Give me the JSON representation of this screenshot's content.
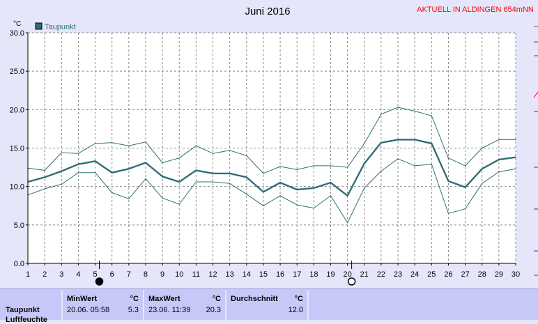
{
  "header": {
    "month_title": "Juni 2016",
    "station_label": "AKTUELL IN ALDINGEN 654mNN"
  },
  "chart_data": {
    "type": "line",
    "title": "Juni 2016",
    "ylabel": "°C",
    "ylim": [
      0,
      30
    ],
    "yticks": [
      "0.0",
      "5.0",
      "10.0",
      "15.0",
      "20.0",
      "25.0",
      "30.0"
    ],
    "x": [
      1,
      2,
      3,
      4,
      5,
      6,
      7,
      8,
      9,
      10,
      11,
      12,
      13,
      14,
      15,
      16,
      17,
      18,
      19,
      20,
      21,
      22,
      23,
      24,
      25,
      26,
      27,
      28,
      29,
      30
    ],
    "grid": true,
    "legend": "top-left",
    "series": [
      {
        "name": "Taupunkt",
        "role": "mean",
        "color": "#2f6f73",
        "values": [
          10.6,
          11.2,
          12.0,
          12.9,
          13.3,
          11.8,
          12.3,
          13.1,
          11.3,
          10.6,
          12.1,
          11.7,
          11.7,
          11.2,
          9.3,
          10.5,
          9.6,
          9.8,
          10.5,
          8.8,
          13.0,
          15.7,
          16.1,
          16.1,
          15.6,
          10.7,
          9.9,
          12.3,
          13.5,
          13.8
        ]
      },
      {
        "role": "max",
        "color": "#2f6f73",
        "values": [
          12.4,
          12.1,
          14.4,
          14.3,
          15.6,
          15.7,
          15.3,
          15.8,
          13.1,
          13.7,
          15.3,
          14.3,
          14.7,
          14.0,
          11.7,
          12.6,
          12.2,
          12.7,
          12.7,
          12.5,
          15.6,
          19.4,
          20.3,
          19.8,
          19.2,
          13.7,
          12.7,
          15.0,
          16.1,
          16.1
        ]
      },
      {
        "role": "min",
        "color": "#2f6f73",
        "values": [
          8.9,
          9.7,
          10.3,
          11.8,
          11.8,
          9.2,
          8.4,
          11.0,
          8.5,
          7.7,
          10.6,
          10.6,
          10.4,
          9.0,
          7.5,
          8.8,
          7.6,
          7.2,
          8.8,
          5.3,
          9.8,
          12.0,
          13.6,
          12.7,
          12.9,
          6.5,
          7.1,
          10.4,
          11.9,
          12.3
        ]
      }
    ],
    "markers": [
      {
        "day": 5,
        "icon": "full-moon-icon"
      },
      {
        "day": 20,
        "icon": "new-moon-icon"
      }
    ]
  },
  "stats": {
    "row_label": "Taupunkt",
    "row_label_2": "Luftfeuchte",
    "min": {
      "header": "MinWert",
      "unit": "°C",
      "time": "20.06.  05:58",
      "value": "5.3"
    },
    "max": {
      "header": "MaxWert",
      "unit": "°C",
      "time": "23.06.  11:39",
      "value": "20.3"
    },
    "avg": {
      "header": "Durchschnitt",
      "unit": "°C",
      "value": "12.0"
    }
  }
}
